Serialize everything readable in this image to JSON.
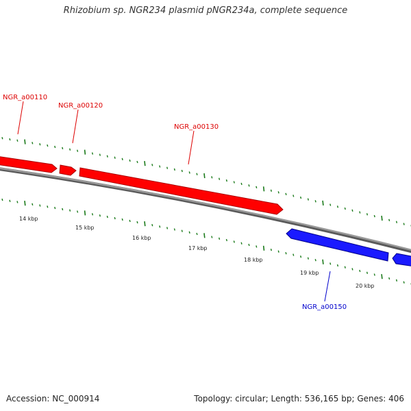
{
  "header": {
    "title": "Rhizobium sp. NGR234 plasmid pNGR234a, complete sequence"
  },
  "footer": {
    "accession": "Accession: NC_000914",
    "topology": "Topology: circular; Length: 536,165 bp; Genes: 406"
  },
  "colors": {
    "forward_gene": "#ff0000",
    "reverse_gene": "#1a1aff",
    "backbone": "#808080",
    "ticks": "#1a7a1a"
  },
  "genes": [
    {
      "name": "NGR_a00110",
      "strand": "forward"
    },
    {
      "name": "NGR_a00120",
      "strand": "forward"
    },
    {
      "name": "NGR_a00130",
      "strand": "forward"
    },
    {
      "name": "NGR_a00150",
      "strand": "reverse"
    }
  ],
  "scale": {
    "labels": [
      "14 kbp",
      "15 kbp",
      "16 kbp",
      "17 kbp",
      "18 kbp",
      "19 kbp",
      "20 kbp"
    ]
  }
}
